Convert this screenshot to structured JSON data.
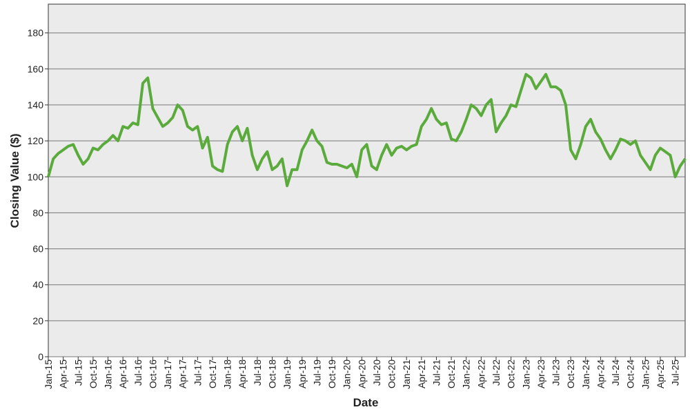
{
  "chart_data": {
    "type": "line",
    "xlabel": "Date",
    "ylabel": "Closing Value ($)",
    "x": [
      "2015-01",
      "2015-02",
      "2015-03",
      "2015-04",
      "2015-05",
      "2015-06",
      "2015-07",
      "2015-08",
      "2015-09",
      "2015-10",
      "2015-11",
      "2015-12",
      "2016-01",
      "2016-02",
      "2016-03",
      "2016-04",
      "2016-05",
      "2016-06",
      "2016-07",
      "2016-08",
      "2016-09",
      "2016-10",
      "2016-11",
      "2016-12",
      "2017-01",
      "2017-02",
      "2017-03",
      "2017-04",
      "2017-05",
      "2017-06",
      "2017-07",
      "2017-08",
      "2017-09",
      "2017-10",
      "2017-11",
      "2017-12",
      "2018-01",
      "2018-02",
      "2018-03",
      "2018-04",
      "2018-05",
      "2018-06",
      "2018-07",
      "2018-08",
      "2018-09",
      "2018-10",
      "2018-11",
      "2018-12",
      "2019-01",
      "2019-02",
      "2019-03",
      "2019-04",
      "2019-05",
      "2019-06",
      "2019-07",
      "2019-08",
      "2019-09",
      "2019-10",
      "2019-11",
      "2019-12",
      "2020-01",
      "2020-02",
      "2020-03",
      "2020-04",
      "2020-05",
      "2020-06",
      "2020-07",
      "2020-08",
      "2020-09",
      "2020-10",
      "2020-11",
      "2020-12",
      "2021-01",
      "2021-02",
      "2021-03",
      "2021-04",
      "2021-05",
      "2021-06",
      "2021-07",
      "2021-08",
      "2021-09",
      "2021-10",
      "2021-11",
      "2021-12",
      "2022-01",
      "2022-02",
      "2022-03",
      "2022-04",
      "2022-05",
      "2022-06",
      "2022-07",
      "2022-08",
      "2022-09",
      "2022-10",
      "2022-11",
      "2022-12",
      "2023-01",
      "2023-02",
      "2023-03",
      "2023-04",
      "2023-05",
      "2023-06",
      "2023-07",
      "2023-08",
      "2023-09",
      "2023-10",
      "2023-11",
      "2023-12",
      "2024-01",
      "2024-02",
      "2024-03",
      "2024-04",
      "2024-05",
      "2024-06",
      "2024-07",
      "2024-08",
      "2024-09",
      "2024-10",
      "2024-11",
      "2024-12",
      "2025-01",
      "2025-02",
      "2025-03",
      "2025-04",
      "2025-05",
      "2025-06",
      "2025-07",
      "2025-08",
      "2025-09"
    ],
    "values": [
      100,
      110,
      113,
      115,
      117,
      118,
      112,
      107,
      110,
      116,
      115,
      118,
      120,
      123,
      120,
      128,
      127,
      130,
      129,
      152,
      155,
      138,
      133,
      128,
      130,
      133,
      140,
      137,
      128,
      126,
      128,
      116,
      122,
      106,
      104,
      103,
      118,
      125,
      128,
      120,
      127,
      112,
      104,
      110,
      114,
      104,
      106,
      110,
      95,
      104,
      104,
      115,
      120,
      126,
      120,
      117,
      108,
      107,
      107,
      106,
      105,
      107,
      100,
      115,
      118,
      106,
      104,
      112,
      118,
      112,
      116,
      117,
      115,
      117,
      118,
      128,
      132,
      138,
      132,
      129,
      130,
      121,
      120,
      125,
      132,
      140,
      138,
      134,
      140,
      143,
      125,
      130,
      134,
      140,
      139,
      148,
      157,
      155,
      149,
      153,
      157,
      150,
      150,
      148,
      140,
      115,
      110,
      118,
      128,
      132,
      125,
      121,
      115,
      110,
      115,
      121,
      120,
      118,
      120,
      112,
      108,
      104,
      112,
      116,
      114,
      112,
      100,
      106,
      110
    ],
    "color": "#5aaa3c",
    "xlim": [
      "2015-01",
      "2025-09"
    ],
    "xticks": [
      {
        "value": "2015-01",
        "label": "Jan-15"
      },
      {
        "value": "2015-04",
        "label": "Apr-15"
      },
      {
        "value": "2015-07",
        "label": "Jul-15"
      },
      {
        "value": "2015-10",
        "label": "Oct-15"
      },
      {
        "value": "2016-01",
        "label": "Jan-16"
      },
      {
        "value": "2016-04",
        "label": "Apr-16"
      },
      {
        "value": "2016-07",
        "label": "Jul-16"
      },
      {
        "value": "2016-10",
        "label": "Oct-16"
      },
      {
        "value": "2017-01",
        "label": "Jan-17"
      },
      {
        "value": "2017-04",
        "label": "Apr-17"
      },
      {
        "value": "2017-07",
        "label": "Jul-17"
      },
      {
        "value": "2017-10",
        "label": "Oct-17"
      },
      {
        "value": "2018-01",
        "label": "Jan-18"
      },
      {
        "value": "2018-04",
        "label": "Apr-18"
      },
      {
        "value": "2018-07",
        "label": "Jul-18"
      },
      {
        "value": "2018-10",
        "label": "Oct-18"
      },
      {
        "value": "2019-01",
        "label": "Jan-19"
      },
      {
        "value": "2019-04",
        "label": "Apr-19"
      },
      {
        "value": "2019-07",
        "label": "Jul-19"
      },
      {
        "value": "2019-10",
        "label": "Oct-19"
      },
      {
        "value": "2020-01",
        "label": "Jan-20"
      },
      {
        "value": "2020-04",
        "label": "Apr-20"
      },
      {
        "value": "2020-07",
        "label": "Jul-20"
      },
      {
        "value": "2020-10",
        "label": "Oct-20"
      },
      {
        "value": "2021-01",
        "label": "Jan-21"
      },
      {
        "value": "2021-04",
        "label": "Apr-21"
      },
      {
        "value": "2021-07",
        "label": "Jul-21"
      },
      {
        "value": "2021-10",
        "label": "Oct-21"
      },
      {
        "value": "2022-01",
        "label": "Jan-22"
      },
      {
        "value": "2022-04",
        "label": "Apr-22"
      },
      {
        "value": "2022-07",
        "label": "Jul-22"
      },
      {
        "value": "2022-10",
        "label": "Oct-22"
      },
      {
        "value": "2023-01",
        "label": "Jan-23"
      },
      {
        "value": "2023-04",
        "label": "Apr-23"
      },
      {
        "value": "2023-07",
        "label": "Jul-23"
      },
      {
        "value": "2023-10",
        "label": "Oct-23"
      },
      {
        "value": "2024-01",
        "label": "Jan-24"
      },
      {
        "value": "2024-04",
        "label": "Apr-24"
      },
      {
        "value": "2024-07",
        "label": "Jul-24"
      },
      {
        "value": "2024-10",
        "label": "Oct-24"
      },
      {
        "value": "2025-01",
        "label": "Jan-25"
      },
      {
        "value": "2025-04",
        "label": "Apr-25"
      },
      {
        "value": "2025-07",
        "label": "Jul-25"
      }
    ],
    "ylim": [
      0,
      196
    ],
    "yticks": [
      0,
      20,
      40,
      60,
      80,
      100,
      120,
      140,
      160,
      180
    ],
    "grid": true
  }
}
